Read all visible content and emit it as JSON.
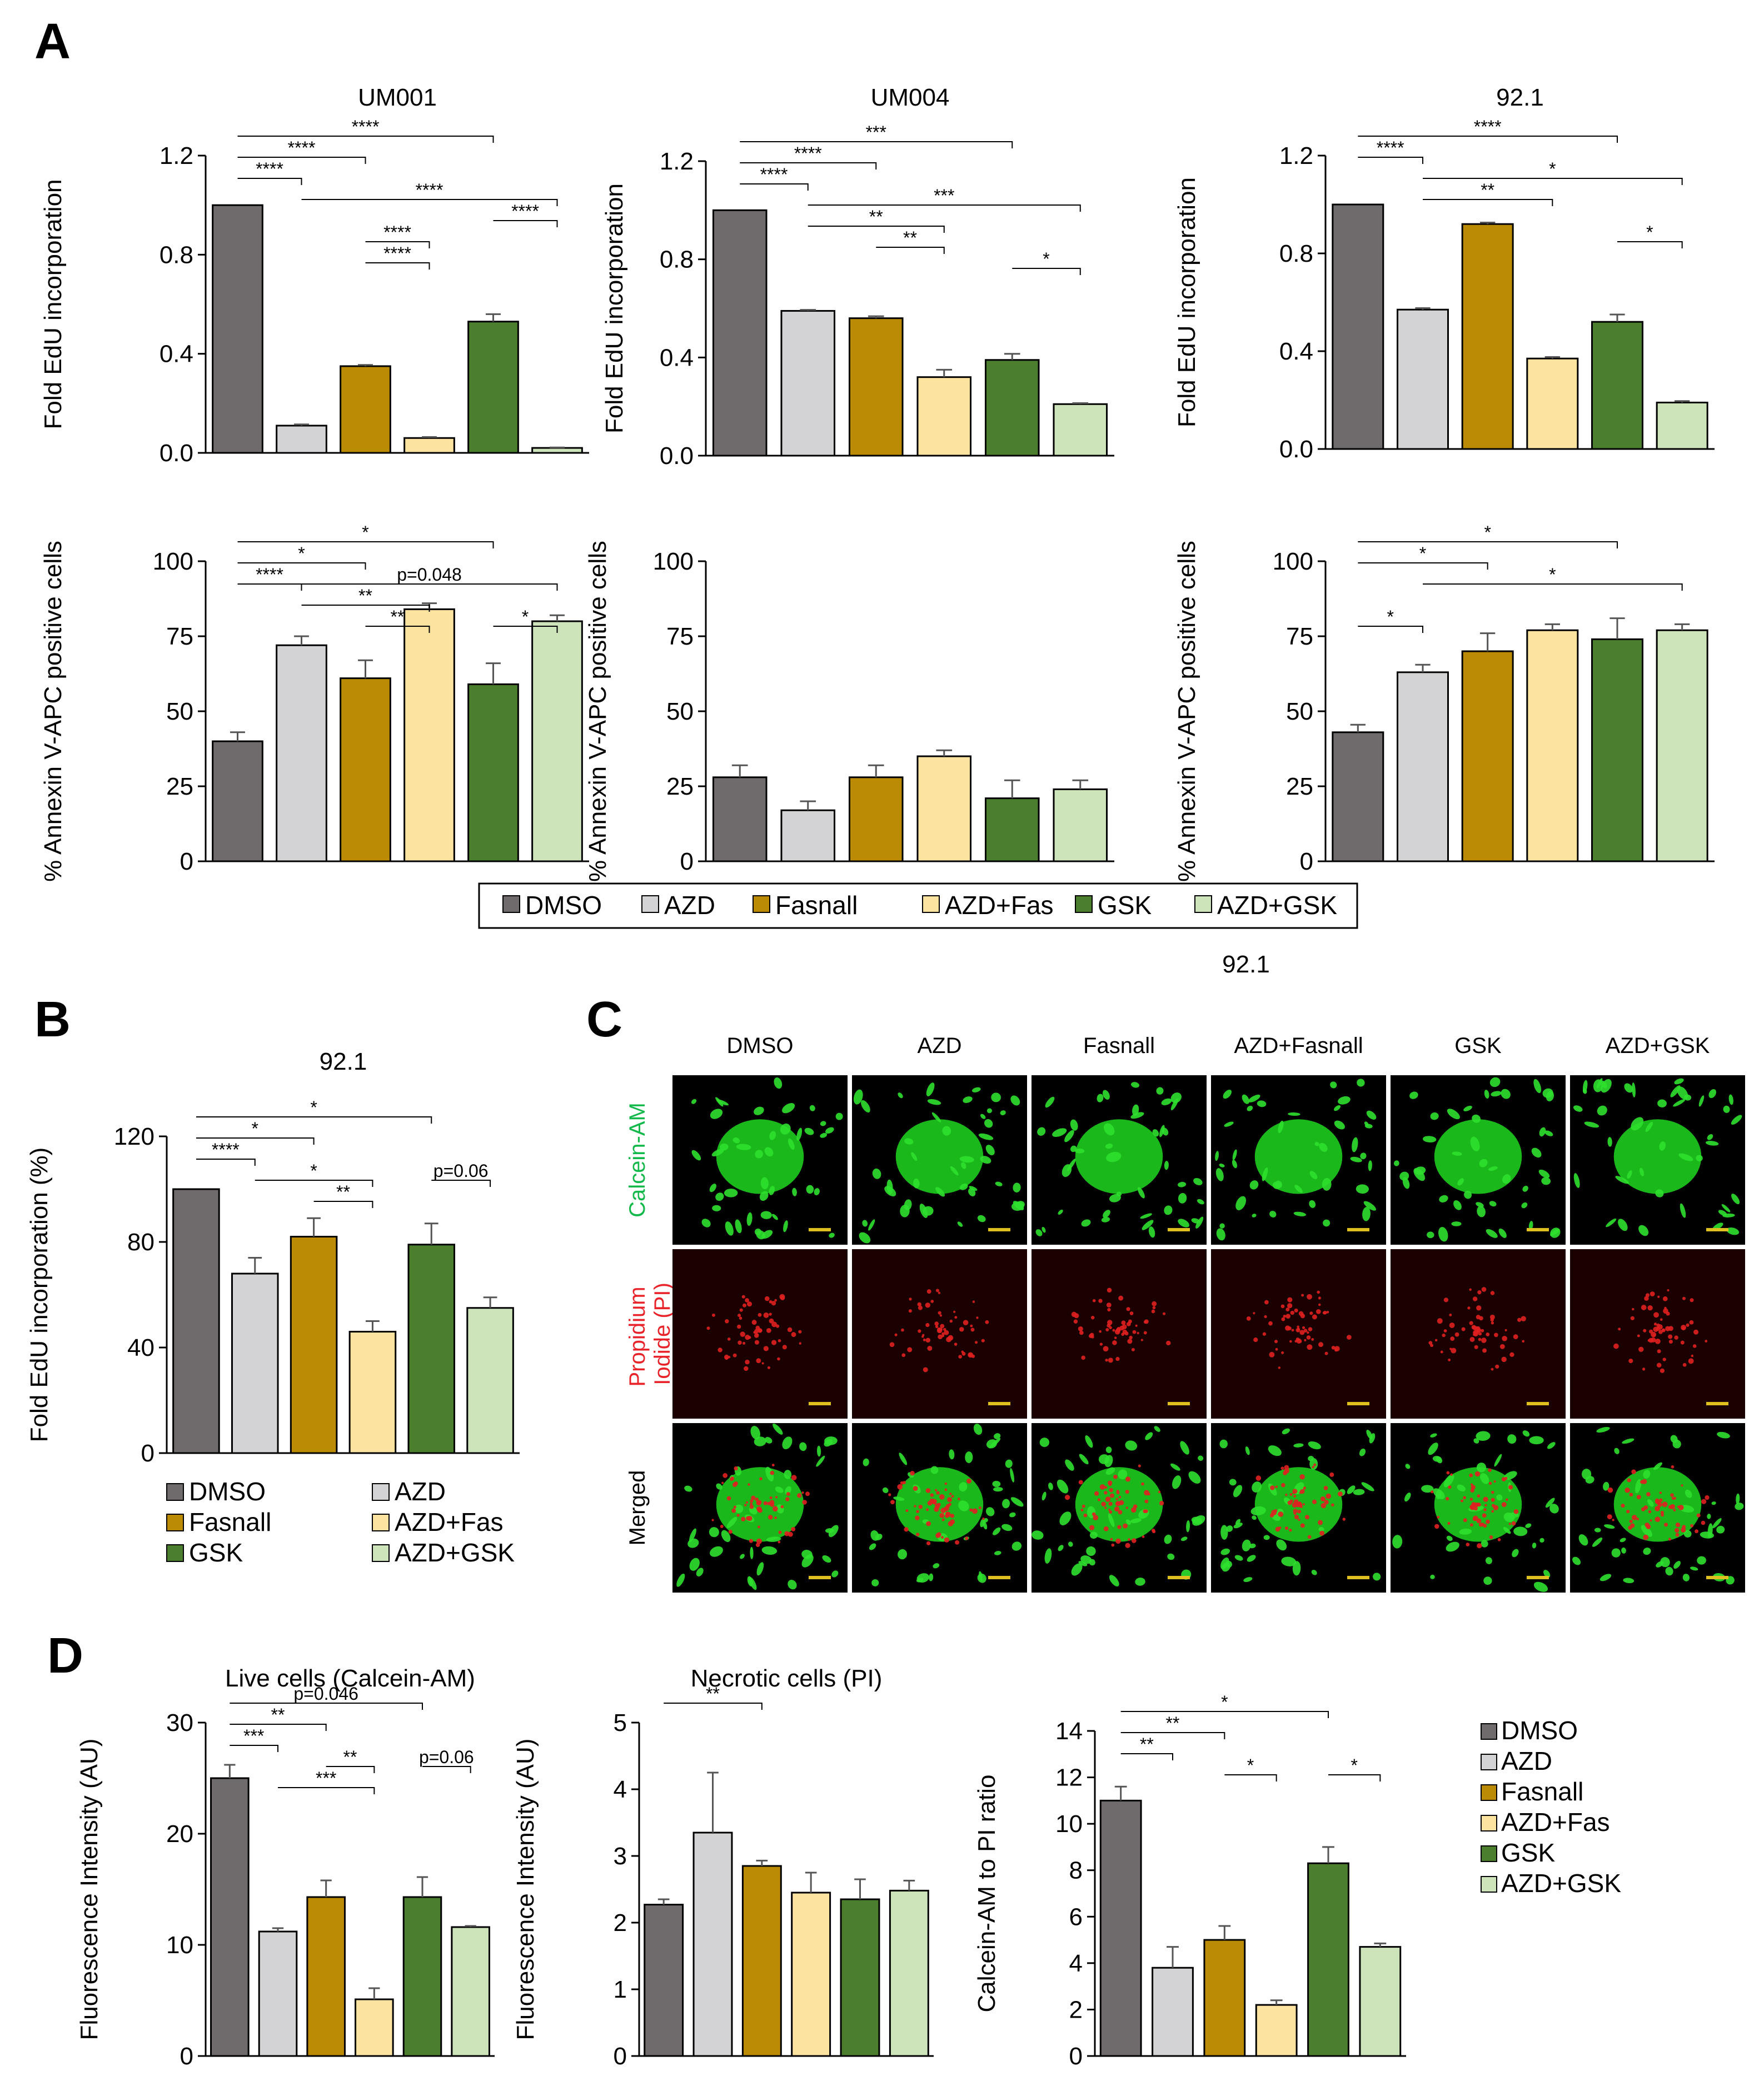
{
  "panels": {
    "A": "A",
    "B": "B",
    "C": "C",
    "D": "D"
  },
  "colors": {
    "DMSO": "#6f6a6b",
    "AZD": "#d3d2d4",
    "Fasnall": "#bb8b05",
    "AZD+Fas": "#fde3a0",
    "GSK": "#4b7f2d",
    "AZD+GSK": "#cde4bb"
  },
  "legend": {
    "panelA": [
      "DMSO",
      "AZD",
      "Fasnall",
      "AZD+Fas",
      "GSK",
      "AZD+GSK"
    ],
    "panelB": [
      "DMSO",
      "AZD",
      "Fasnall",
      "AZD+Fas",
      "GSK",
      "AZD+GSK"
    ],
    "panelD": [
      "DMSO",
      "AZD",
      "Fasnall",
      "AZD+Fas",
      "GSK",
      "AZD+GSK"
    ]
  },
  "panelC": {
    "title": "92.1",
    "columns": [
      "DMSO",
      "AZD",
      "Fasnall",
      "AZD+Fasnall",
      "GSK",
      "AZD+GSK"
    ],
    "rows": [
      {
        "label1": "Calcein-AM",
        "label2": "",
        "color": "#12b84a"
      },
      {
        "label1": "Propidium",
        "label2": "Iodide (PI)",
        "color": "#e8242a"
      },
      {
        "label1": "Merged",
        "label2": "",
        "color": "#000000"
      }
    ]
  },
  "chart_data": [
    {
      "id": "A1",
      "type": "bar",
      "title": "UM001",
      "ylabel": "Fold EdU incorporation",
      "categories": [
        "DMSO",
        "AZD",
        "Fasnall",
        "AZD+Fas",
        "GSK",
        "AZD+GSK"
      ],
      "values": [
        1.0,
        0.11,
        0.35,
        0.06,
        0.53,
        0.02
      ],
      "errors": [
        0,
        0.005,
        0.005,
        0.004,
        0.03,
        0.002
      ],
      "ylim": [
        0,
        1.2
      ],
      "yticks": [
        "0.0",
        "0.4",
        "0.8",
        "1.2"
      ],
      "ytickvals": [
        0,
        0.4,
        0.8,
        1.2
      ],
      "sig": [
        {
          "a": 0,
          "b": 4,
          "label": "****",
          "level": 0
        },
        {
          "a": 0,
          "b": 2,
          "label": "****",
          "level": 1
        },
        {
          "a": 0,
          "b": 1,
          "label": "****",
          "level": 2
        },
        {
          "a": 1,
          "b": 5,
          "label": "****",
          "level": 3
        },
        {
          "a": 4,
          "b": 5,
          "label": "****",
          "level": 4
        },
        {
          "a": 2,
          "b": 3,
          "label": "****",
          "level": 5
        },
        {
          "a": 2,
          "b": 3,
          "label": "****",
          "level": 6
        }
      ]
    },
    {
      "id": "A2",
      "type": "bar",
      "title": "UM004",
      "ylabel": "Fold EdU incorporation",
      "categories": [
        "DMSO",
        "AZD",
        "Fasnall",
        "AZD+Fas",
        "GSK",
        "AZD+GSK"
      ],
      "values": [
        1.0,
        0.59,
        0.56,
        0.32,
        0.39,
        0.21
      ],
      "errors": [
        0,
        0.004,
        0.008,
        0.03,
        0.025,
        0.004
      ],
      "ylim": [
        0,
        1.2
      ],
      "yticks": [
        "0.0",
        "0.4",
        "0.8",
        "1.2"
      ],
      "ytickvals": [
        0,
        0.4,
        0.8,
        1.2
      ],
      "sig": [
        {
          "a": 0,
          "b": 4,
          "label": "***",
          "level": 0
        },
        {
          "a": 0,
          "b": 2,
          "label": "****",
          "level": 1
        },
        {
          "a": 0,
          "b": 1,
          "label": "****",
          "level": 2
        },
        {
          "a": 1,
          "b": 5,
          "label": "***",
          "level": 3
        },
        {
          "a": 1,
          "b": 3,
          "label": "**",
          "level": 4
        },
        {
          "a": 2,
          "b": 3,
          "label": "**",
          "level": 5
        },
        {
          "a": 4,
          "b": 5,
          "label": "*",
          "level": 6
        }
      ]
    },
    {
      "id": "A3",
      "type": "bar",
      "title": "92.1",
      "ylabel": "Fold EdU incorporation",
      "categories": [
        "DMSO",
        "AZD",
        "Fasnall",
        "AZD+Fas",
        "GSK",
        "AZD+GSK"
      ],
      "values": [
        1.0,
        0.57,
        0.92,
        0.37,
        0.52,
        0.19
      ],
      "errors": [
        0,
        0.006,
        0.006,
        0.006,
        0.03,
        0.006
      ],
      "ylim": [
        0,
        1.2
      ],
      "yticks": [
        "0.0",
        "0.4",
        "0.8",
        "1.2"
      ],
      "ytickvals": [
        0,
        0.4,
        0.8,
        1.2
      ],
      "sig": [
        {
          "a": 0,
          "b": 4,
          "label": "****",
          "level": 0
        },
        {
          "a": 0,
          "b": 1,
          "label": "****",
          "level": 1
        },
        {
          "a": 1,
          "b": 5,
          "label": "*",
          "level": 2
        },
        {
          "a": 1,
          "b": 3,
          "label": "**",
          "level": 3
        },
        {
          "a": 4,
          "b": 5,
          "label": "*",
          "level": 5
        }
      ]
    },
    {
      "id": "A4",
      "type": "bar",
      "title": "",
      "ylabel": "% Annexin V-APC positive cells",
      "categories": [
        "DMSO",
        "AZD",
        "Fasnall",
        "AZD+Fas",
        "GSK",
        "AZD+GSK"
      ],
      "values": [
        40,
        72,
        61,
        84,
        59,
        80
      ],
      "errors": [
        3,
        3,
        6,
        2,
        7,
        2
      ],
      "ylim": [
        0,
        100
      ],
      "yticks": [
        "0",
        "25",
        "50",
        "75",
        "100"
      ],
      "ytickvals": [
        0,
        25,
        50,
        75,
        100
      ],
      "sig": [
        {
          "a": 0,
          "b": 4,
          "label": "*",
          "level": 0
        },
        {
          "a": 0,
          "b": 2,
          "label": "*",
          "level": 1
        },
        {
          "a": 1,
          "b": 5,
          "label": "p=0.048",
          "level": 2
        },
        {
          "a": 0,
          "b": 1,
          "label": "****",
          "level": 2
        },
        {
          "a": 1,
          "b": 3,
          "label": "**",
          "level": 3
        },
        {
          "a": 2,
          "b": 3,
          "label": "**",
          "level": 4
        },
        {
          "a": 4,
          "b": 5,
          "label": "*",
          "level": 4
        }
      ]
    },
    {
      "id": "A5",
      "type": "bar",
      "title": "",
      "ylabel": "% Annexin V-APC positive cells",
      "categories": [
        "DMSO",
        "AZD",
        "Fasnall",
        "AZD+Fas",
        "GSK",
        "AZD+GSK"
      ],
      "values": [
        28,
        17,
        28,
        35,
        21,
        24
      ],
      "errors": [
        4,
        3,
        4,
        2,
        6,
        3
      ],
      "ylim": [
        0,
        100
      ],
      "yticks": [
        "0",
        "25",
        "50",
        "75",
        "100"
      ],
      "ytickvals": [
        0,
        25,
        50,
        75,
        100
      ],
      "sig": []
    },
    {
      "id": "A6",
      "type": "bar",
      "title": "",
      "ylabel": "% Annexin V-APC positive cells",
      "categories": [
        "DMSO",
        "AZD",
        "Fasnall",
        "AZD+Fas",
        "GSK",
        "AZD+GSK"
      ],
      "values": [
        43,
        63,
        70,
        77,
        74,
        77
      ],
      "errors": [
        2.5,
        2.5,
        6,
        2,
        7,
        2
      ],
      "ylim": [
        0,
        100
      ],
      "yticks": [
        "0",
        "25",
        "50",
        "75",
        "100"
      ],
      "ytickvals": [
        0,
        25,
        50,
        75,
        100
      ],
      "sig": [
        {
          "a": 0,
          "b": 4,
          "label": "*",
          "level": 0
        },
        {
          "a": 0,
          "b": 2,
          "label": "*",
          "level": 1
        },
        {
          "a": 1,
          "b": 5,
          "label": "*",
          "level": 2
        },
        {
          "a": 0,
          "b": 1,
          "label": "*",
          "level": 4
        }
      ]
    },
    {
      "id": "B",
      "type": "bar",
      "title": "92.1",
      "ylabel": "Fold EdU incorporation (%)",
      "categories": [
        "DMSO",
        "AZD",
        "Fasnall",
        "AZD+Fas",
        "GSK",
        "AZD+GSK"
      ],
      "values": [
        100,
        68,
        82,
        46,
        79,
        55
      ],
      "errors": [
        0,
        6,
        7,
        4,
        8,
        4
      ],
      "ylim": [
        0,
        120
      ],
      "yticks": [
        "0",
        "40",
        "80",
        "120"
      ],
      "ytickvals": [
        0,
        40,
        80,
        120
      ],
      "sig": [
        {
          "a": 0,
          "b": 4,
          "label": "*",
          "level": 0
        },
        {
          "a": 0,
          "b": 2,
          "label": "*",
          "level": 1
        },
        {
          "a": 0,
          "b": 1,
          "label": "****",
          "level": 2
        },
        {
          "a": 1,
          "b": 3,
          "label": "*",
          "level": 3
        },
        {
          "a": 4,
          "b": 5,
          "label": "p=0.06",
          "level": 3
        },
        {
          "a": 2,
          "b": 3,
          "label": "**",
          "level": 4
        }
      ]
    },
    {
      "id": "D1",
      "type": "bar",
      "title": "Live cells (Calcein-AM)",
      "ylabel": "Fluorescence Intensity (AU)",
      "categories": [
        "DMSO",
        "AZD",
        "Fasnall",
        "AZD+Fas",
        "GSK",
        "AZD+GSK"
      ],
      "values": [
        25,
        11.2,
        14.3,
        5.1,
        14.3,
        11.6
      ],
      "errors": [
        1.2,
        0.3,
        1.5,
        1.0,
        1.8,
        0.1
      ],
      "ylim": [
        0,
        30
      ],
      "yticks": [
        "0",
        "10",
        "20",
        "30"
      ],
      "ytickvals": [
        0,
        10,
        20,
        30
      ],
      "sig": [
        {
          "a": 0,
          "b": 4,
          "label": "p=0.046",
          "level": 0
        },
        {
          "a": 0,
          "b": 2,
          "label": "**",
          "level": 1
        },
        {
          "a": 0,
          "b": 1,
          "label": "***",
          "level": 2
        },
        {
          "a": 2,
          "b": 3,
          "label": "**",
          "level": 3
        },
        {
          "a": 4,
          "b": 5,
          "label": "p=0.06",
          "level": 3
        },
        {
          "a": 1,
          "b": 3,
          "label": "***",
          "level": 4
        }
      ]
    },
    {
      "id": "D2",
      "type": "bar",
      "title": "Necrotic cells (PI)",
      "ylabel": "Fluorescence Intensity (AU)",
      "categories": [
        "DMSO",
        "AZD",
        "Fasnall",
        "AZD+Fas",
        "GSK",
        "AZD+GSK"
      ],
      "values": [
        2.27,
        3.35,
        2.85,
        2.45,
        2.35,
        2.48
      ],
      "errors": [
        0.08,
        0.9,
        0.08,
        0.3,
        0.3,
        0.15
      ],
      "ylim": [
        0,
        5
      ],
      "yticks": [
        "0",
        "1",
        "2",
        "3",
        "4",
        "5"
      ],
      "ytickvals": [
        0,
        1,
        2,
        3,
        4,
        5
      ],
      "sig": [
        {
          "a": 0,
          "b": 2,
          "label": "**",
          "level": 0
        }
      ]
    },
    {
      "id": "D3",
      "type": "bar",
      "title": "",
      "ylabel": "Calcein-AM to PI ratio",
      "categories": [
        "DMSO",
        "AZD",
        "Fasnall",
        "AZD+Fas",
        "GSK",
        "AZD+GSK"
      ],
      "values": [
        11,
        3.8,
        5,
        2.2,
        8.3,
        4.7
      ],
      "errors": [
        0.6,
        0.9,
        0.6,
        0.2,
        0.7,
        0.15
      ],
      "ylim": [
        0,
        14
      ],
      "yticks": [
        "0",
        "2",
        "4",
        "6",
        "8",
        "10",
        "12",
        "14"
      ],
      "ytickvals": [
        0,
        2,
        4,
        6,
        8,
        10,
        12,
        14
      ],
      "sig": [
        {
          "a": 0,
          "b": 4,
          "label": "*",
          "level": 0
        },
        {
          "a": 0,
          "b": 2,
          "label": "**",
          "level": 1
        },
        {
          "a": 0,
          "b": 1,
          "label": "**",
          "level": 2
        },
        {
          "a": 2,
          "b": 3,
          "label": "*",
          "level": 3
        },
        {
          "a": 4,
          "b": 5,
          "label": "*",
          "level": 3
        }
      ]
    }
  ]
}
